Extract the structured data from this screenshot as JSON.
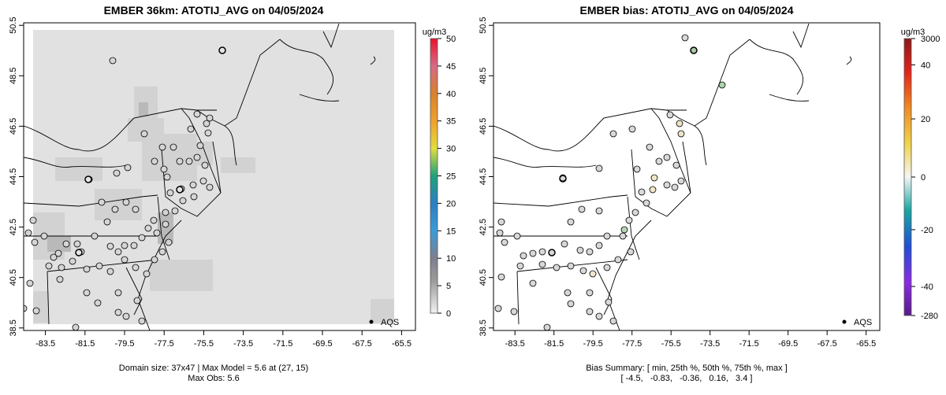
{
  "chart_data": [
    {
      "type": "map",
      "title": "EMBER 36km: ATOTIJ_AVG on 04/05/2024",
      "x_ticks": [
        "-83.5",
        "-81.5",
        "-79.5",
        "-77.5",
        "-75.5",
        "-73.5",
        "-71.5",
        "-69.5",
        "-67.5",
        "-65.5"
      ],
      "y_ticks": [
        "38.5",
        "40.5",
        "42.5",
        "44.5",
        "46.5",
        "48.5",
        "50.5"
      ],
      "xlim": [
        -84.6,
        -64.8
      ],
      "ylim": [
        38.4,
        50.6
      ],
      "legend": {
        "title": "ug/m3",
        "ticks": [
          "0",
          "5",
          "10",
          "15",
          "20",
          "25",
          "30",
          "35",
          "40",
          "45",
          "50"
        ],
        "range": [
          0,
          50
        ]
      },
      "points_label": "AQS",
      "footer_lines": [
        "Domain size: 37x47 | Max Model = 5.6 at (27, 15)",
        "Max Obs: 5.6"
      ]
    },
    {
      "type": "map",
      "title": "EMBER bias: ATOTIJ_AVG on 04/05/2024",
      "x_ticks": [
        "-83.5",
        "-81.5",
        "-79.5",
        "-77.5",
        "-75.5",
        "-73.5",
        "-71.5",
        "-69.5",
        "-67.5",
        "-65.5"
      ],
      "y_ticks": [
        "38.5",
        "40.5",
        "42.5",
        "44.5",
        "46.5",
        "48.5",
        "50.5"
      ],
      "xlim": [
        -84.6,
        -64.8
      ],
      "ylim": [
        38.4,
        50.6
      ],
      "legend": {
        "title": "ug/m3",
        "ticks": [
          "3000",
          "40",
          "20",
          "0",
          "-20",
          "-40",
          "-280"
        ]
      },
      "points_label": "AQS",
      "footer_lines": [
        "Bias Summary: [ min, 25th %, 50th %, 75th %, max ]",
        "[ -4.5,   -0.83,   -0.36,   0.16,   3.4 ]"
      ],
      "bias_summary": {
        "min": -4.5,
        "p25": -0.83,
        "p50": -0.36,
        "p75": 0.16,
        "max": 3.4
      }
    }
  ]
}
